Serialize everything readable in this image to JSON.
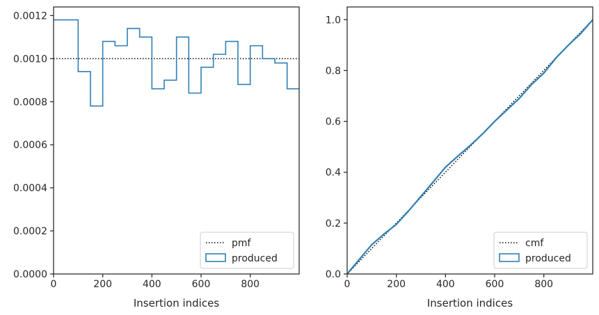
{
  "chart_data": [
    {
      "type": "line",
      "xlabel": "Insertion indices",
      "ylabel": "",
      "xlim": [
        0,
        999
      ],
      "ylim": [
        0,
        0.00124
      ],
      "xticks": [
        0,
        200,
        400,
        600,
        800
      ],
      "xtick_labels": [
        "0",
        "200",
        "400",
        "600",
        "800"
      ],
      "yticks": [
        0,
        0.0002,
        0.0004,
        0.0006,
        0.0008,
        0.001,
        0.0012
      ],
      "ytick_labels": [
        "0.0000",
        "0.0002",
        "0.0004",
        "0.0006",
        "0.0008",
        "0.0010",
        "0.0012"
      ],
      "grid": false,
      "legend_position": "lower-right",
      "series": [
        {
          "name": "pmf",
          "style": "dotted",
          "color": "#000000",
          "x": [
            0,
            999
          ],
          "values": [
            0.001,
            0.001
          ]
        },
        {
          "name": "produced",
          "style": "step",
          "color": "#2f7fb5",
          "bin_edges": [
            0,
            100,
            150,
            200,
            250,
            300,
            350,
            400,
            450,
            500,
            550,
            600,
            650,
            700,
            750,
            800,
            850,
            900,
            950,
            999
          ],
          "values": [
            0.00118,
            0.00094,
            0.00078,
            0.00108,
            0.00106,
            0.00114,
            0.0011,
            0.00086,
            0.0009,
            0.0011,
            0.00084,
            0.00096,
            0.00102,
            0.00108,
            0.00088,
            0.00106,
            0.001,
            0.00098,
            0.00086
          ]
        }
      ]
    },
    {
      "type": "line",
      "xlabel": "Insertion indices",
      "ylabel": "",
      "xlim": [
        0,
        999
      ],
      "ylim": [
        0,
        1.05
      ],
      "xticks": [
        0,
        200,
        400,
        600,
        800
      ],
      "xtick_labels": [
        "0",
        "200",
        "400",
        "600",
        "800"
      ],
      "yticks": [
        0,
        0.2,
        0.4,
        0.6,
        0.8,
        1.0
      ],
      "ytick_labels": [
        "0.0",
        "0.2",
        "0.4",
        "0.6",
        "0.8",
        "1.0"
      ],
      "grid": false,
      "legend_position": "lower-right",
      "series": [
        {
          "name": "cmf",
          "style": "dotted",
          "color": "#000000",
          "x": [
            0,
            999
          ],
          "values": [
            0,
            1.0
          ]
        },
        {
          "name": "produced",
          "style": "line",
          "color": "#2f7fb5",
          "x": [
            0,
            50,
            100,
            150,
            200,
            250,
            300,
            350,
            400,
            450,
            500,
            550,
            600,
            650,
            700,
            750,
            800,
            850,
            900,
            950,
            999
          ],
          "values": [
            0,
            0.058,
            0.115,
            0.157,
            0.195,
            0.248,
            0.305,
            0.362,
            0.42,
            0.463,
            0.505,
            0.55,
            0.6,
            0.645,
            0.69,
            0.745,
            0.79,
            0.85,
            0.9,
            0.945,
            1.0
          ]
        }
      ]
    }
  ]
}
